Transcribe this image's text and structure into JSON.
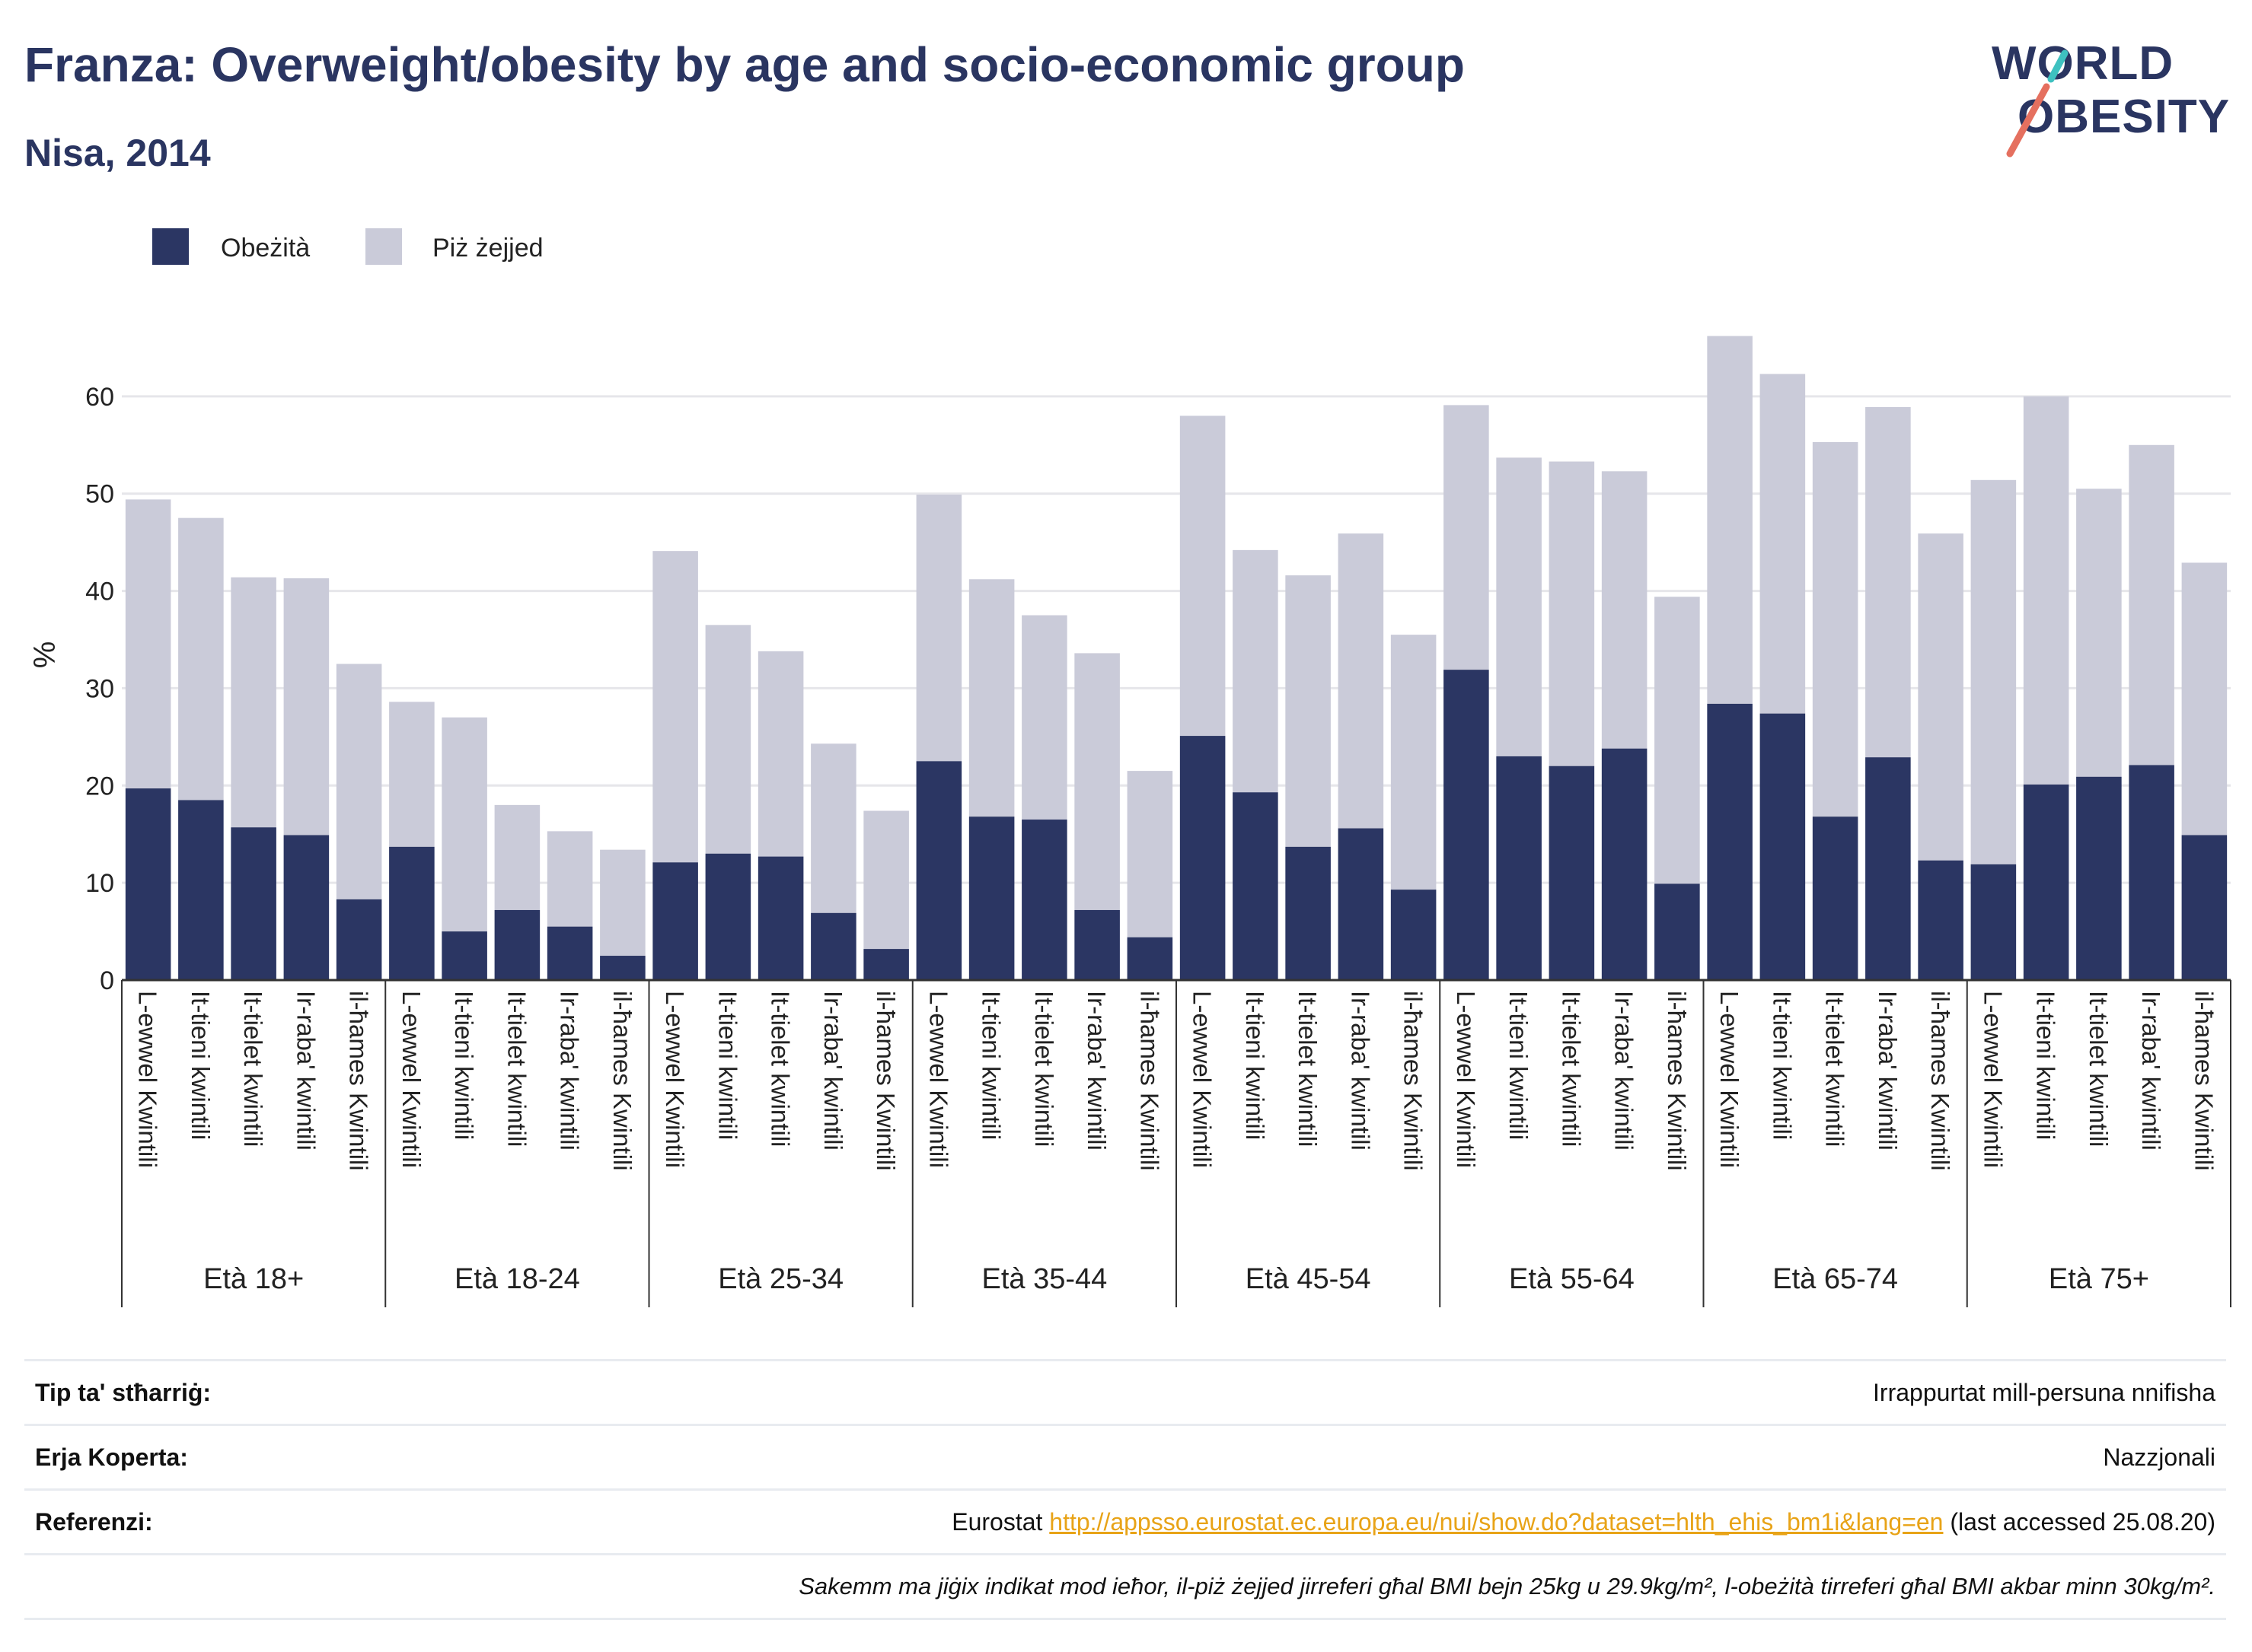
{
  "title": "Franza: Overweight/obesity by age and socio-economic group",
  "subtitle": "Nisa, 2014",
  "logo": {
    "line1": "WORLD",
    "line2": "OBESITY"
  },
  "chart_data": {
    "type": "bar",
    "stacked": true,
    "ylabel": "%",
    "ylim": [
      0,
      70
    ],
    "yticks": [
      0,
      10,
      20,
      30,
      40,
      50,
      60
    ],
    "grid": true,
    "legend_position": "top-left",
    "colors": {
      "obesity": "#2b3663",
      "overweight": "#cacbd9"
    },
    "groups": [
      {
        "label": "Età 18+",
        "categories": [
          "L-ewwel Kwintili",
          "It-tieni kwintili",
          "It-tielet kwintili",
          "Ir-raba' kwintili",
          "il-ħames Kwintili"
        ]
      },
      {
        "label": "Età 18-24",
        "categories": [
          "L-ewwel Kwintili",
          "It-tieni kwintili",
          "It-tielet kwintili",
          "Ir-raba' kwintili",
          "il-ħames Kwintili"
        ]
      },
      {
        "label": "Età 25-34",
        "categories": [
          "L-ewwel Kwintili",
          "It-tieni kwintili",
          "It-tielet kwintili",
          "Ir-raba' kwintili",
          "il-ħames Kwintili"
        ]
      },
      {
        "label": "Età 35-44",
        "categories": [
          "L-ewwel Kwintili",
          "It-tieni kwintili",
          "It-tielet kwintili",
          "Ir-raba' kwintili",
          "il-ħames Kwintili"
        ]
      },
      {
        "label": "Età 45-54",
        "categories": [
          "L-ewwel Kwintili",
          "It-tieni kwintili",
          "It-tielet kwintili",
          "Ir-raba' kwintili",
          "il-ħames Kwintili"
        ]
      },
      {
        "label": "Età 55-64",
        "categories": [
          "L-ewwel Kwintili",
          "It-tieni kwintili",
          "It-tielet kwintili",
          "Ir-raba' kwintili",
          "il-ħames Kwintili"
        ]
      },
      {
        "label": "Età 65-74",
        "categories": [
          "L-ewwel Kwintili",
          "It-tieni kwintili",
          "It-tielet kwintili",
          "Ir-raba' kwintili",
          "il-ħames Kwintili"
        ]
      },
      {
        "label": "Età 75+",
        "categories": [
          "L-ewwel Kwintili",
          "It-tieni kwintili",
          "It-tielet kwintili",
          "Ir-raba' kwintili",
          "il-ħames Kwintili"
        ]
      }
    ],
    "series": [
      {
        "name": "Obeżità",
        "values": [
          19.7,
          18.5,
          15.7,
          14.9,
          8.3,
          13.7,
          5.0,
          7.2,
          5.5,
          2.5,
          12.1,
          13.0,
          12.7,
          6.9,
          3.2,
          22.5,
          16.8,
          16.5,
          7.2,
          4.4,
          25.1,
          19.3,
          13.7,
          15.6,
          9.3,
          31.9,
          23.0,
          22.0,
          23.8,
          9.9,
          28.4,
          27.4,
          16.8,
          22.9,
          12.3,
          11.9,
          20.1,
          20.9,
          22.1,
          14.9
        ]
      },
      {
        "name": "Piż żejjed",
        "values": [
          29.7,
          29.0,
          25.7,
          26.4,
          24.2,
          14.9,
          22.0,
          10.8,
          9.8,
          10.9,
          32.0,
          23.5,
          21.1,
          17.4,
          14.2,
          27.4,
          24.4,
          21.0,
          26.4,
          17.1,
          32.9,
          24.9,
          27.9,
          30.3,
          26.2,
          27.2,
          30.7,
          31.3,
          28.5,
          29.5,
          37.8,
          34.9,
          38.5,
          36.0,
          33.6,
          39.5,
          39.9,
          29.6,
          32.9,
          28.0
        ]
      }
    ]
  },
  "info": {
    "rows": [
      {
        "label": "Tip ta' stħarriġ:",
        "value": "Irrappurtat mill-persuna nnifisha"
      },
      {
        "label": "Erja Koperta:",
        "value": "Nazzjonali"
      }
    ],
    "ref": {
      "label": "Referenzi:",
      "prefix": "Eurostat",
      "link": "http://appsso.eurostat.ec.europa.eu/nui/show.do?dataset=hlth_ehis_bm1i&lang=en",
      "suffix": "(last accessed 25.08.20)"
    },
    "note": "Sakemm ma jiġix indikat mod ieħor, il-piż żejjed jirreferi għal BMI bejn 25kg u 29.9kg/m², l-obeżità tirreferi għal BMI akbar minn 30kg/m²."
  }
}
